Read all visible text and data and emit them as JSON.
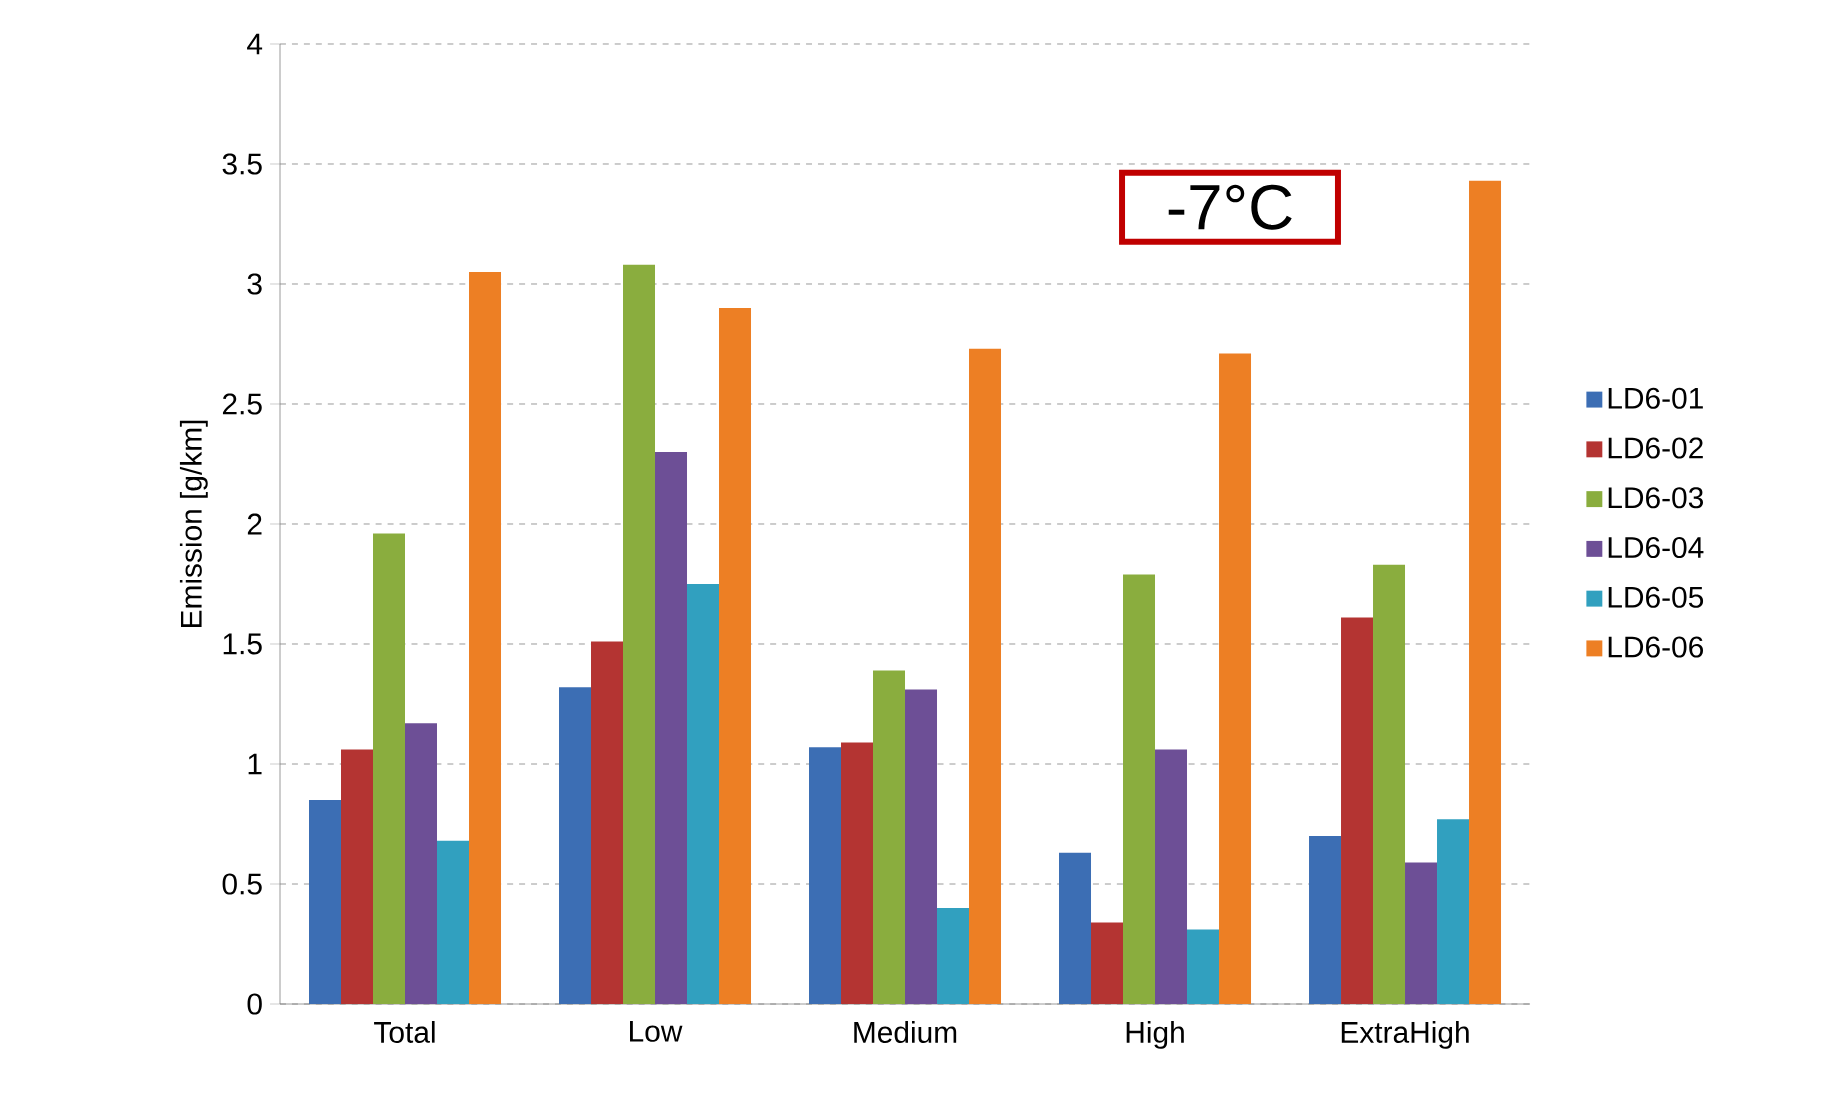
{
  "chart_data": {
    "type": "bar",
    "ylabel": "Emission [g/km]",
    "annotations": [
      "-7°C"
    ],
    "categories": [
      "Total",
      "Low",
      "Medium",
      "High",
      "ExtraHigh"
    ],
    "series": [
      {
        "name": "LD6-01",
        "color": "#3c6eb4",
        "values": [
          0.85,
          1.32,
          1.07,
          0.63,
          0.7
        ]
      },
      {
        "name": "LD6-02",
        "color": "#b43432",
        "values": [
          1.06,
          1.51,
          1.09,
          0.34,
          1.61
        ]
      },
      {
        "name": "LD6-03",
        "color": "#8aad3e",
        "values": [
          1.96,
          3.08,
          1.39,
          1.79,
          1.83
        ]
      },
      {
        "name": "LD6-04",
        "color": "#6d4f96",
        "values": [
          1.17,
          2.3,
          1.31,
          1.06,
          0.59
        ]
      },
      {
        "name": "LD6-05",
        "color": "#31a0bf",
        "values": [
          0.68,
          1.75,
          0.4,
          0.31,
          0.77
        ]
      },
      {
        "name": "LD6-06",
        "color": "#ed7f24",
        "values": [
          3.05,
          2.9,
          2.73,
          2.71,
          3.43
        ]
      }
    ],
    "ylim": [
      0,
      4
    ],
    "yticks": [
      0,
      0.5,
      1,
      1.5,
      2,
      2.5,
      3,
      3.5,
      4
    ],
    "grid": "y",
    "legend": "right"
  }
}
